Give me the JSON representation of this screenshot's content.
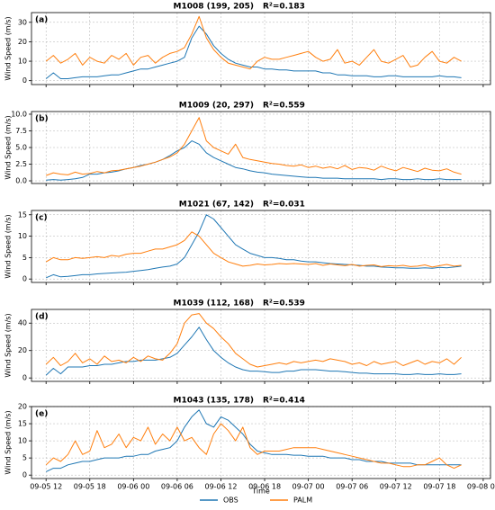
{
  "chart_data": {
    "type": "line",
    "xlabel": "Time",
    "x": [
      "09-05 12",
      "09-05 13",
      "09-05 14",
      "09-05 15",
      "09-05 16",
      "09-05 17",
      "09-05 18",
      "09-05 19",
      "09-05 20",
      "09-05 21",
      "09-05 22",
      "09-05 23",
      "09-06 00",
      "09-06 01",
      "09-06 02",
      "09-06 03",
      "09-06 04",
      "09-06 05",
      "09-06 06",
      "09-06 07",
      "09-06 08",
      "09-06 09",
      "09-06 10",
      "09-06 11",
      "09-06 12",
      "09-06 13",
      "09-06 14",
      "09-06 15",
      "09-06 16",
      "09-06 17",
      "09-06 18",
      "09-06 19",
      "09-06 20",
      "09-06 21",
      "09-06 22",
      "09-06 23",
      "09-07 00",
      "09-07 01",
      "09-07 02",
      "09-07 03",
      "09-07 04",
      "09-07 05",
      "09-07 06",
      "09-07 07",
      "09-07 08",
      "09-07 09",
      "09-07 10",
      "09-07 11",
      "09-07 12",
      "09-07 13",
      "09-07 14",
      "09-07 15",
      "09-07 16",
      "09-07 17",
      "09-07 18",
      "09-07 19",
      "09-07 20",
      "09-07 21"
    ],
    "xlim": [
      "09-05 10",
      "09-08 01"
    ],
    "xticks": [
      "09-05 12",
      "09-05 18",
      "09-06 00",
      "09-06 06",
      "09-06 12",
      "09-06 18",
      "09-07 00",
      "09-07 06",
      "09-07 12",
      "09-07 18",
      "09-08 00"
    ],
    "grid": true,
    "series": [
      {
        "name": "OBS",
        "color": "#1f77b4"
      },
      {
        "name": "PALM",
        "color": "#ff7f0e"
      }
    ],
    "panels": [
      {
        "label": "(a)",
        "title": "M1008 (199, 205)",
        "annotation": "R²=0.183",
        "ylabel": "Wind Speed (m/s)",
        "ylim": [
          -2,
          35
        ],
        "yticks": [
          0,
          10,
          20,
          30
        ],
        "series": [
          {
            "values": [
              1,
              4,
              1,
              1,
              1.5,
              2,
              2,
              2,
              2.5,
              3,
              3,
              4,
              5,
              6,
              6,
              7,
              8,
              9,
              10,
              12,
              22,
              28,
              24,
              18,
              14,
              11,
              9,
              8,
              7,
              7,
              6,
              6,
              5.5,
              5.5,
              5,
              5,
              5,
              5,
              4,
              4,
              3,
              3,
              2.5,
              2.5,
              2.5,
              2,
              2,
              2.5,
              2.5,
              2,
              2,
              2,
              2,
              2,
              2.5,
              2,
              2,
              1.5
            ]
          },
          {
            "values": [
              10,
              13,
              9,
              11,
              14,
              8,
              12,
              10,
              9,
              13,
              11,
              14,
              8,
              12,
              13,
              9,
              12,
              14,
              15,
              17,
              24,
              33,
              22,
              16,
              12,
              9,
              8,
              7,
              6,
              10,
              12,
              11,
              11,
              12,
              13,
              14,
              15,
              12,
              10,
              11,
              16,
              9,
              10,
              8,
              12,
              16,
              10,
              9,
              11,
              13,
              7,
              8,
              12,
              15,
              10,
              9,
              12,
              10
            ]
          }
        ]
      },
      {
        "label": "(b)",
        "title": "M1009 (20, 297)",
        "annotation": "R²=0.559",
        "ylabel": "Wind Speed (m/s)",
        "ylim": [
          -0.4,
          10.4
        ],
        "yticks": [
          {
            "value": 0,
            "label": "0.0"
          },
          {
            "value": 2.5,
            "label": "2.5"
          },
          {
            "value": 5,
            "label": "5.0"
          },
          {
            "value": 7.5,
            "label": "7.5"
          },
          {
            "value": 10,
            "label": "10.0"
          }
        ],
        "series": [
          {
            "values": [
              0.1,
              0.2,
              0.1,
              0.2,
              0.3,
              0.5,
              1,
              1,
              1.2,
              1.3,
              1.5,
              1.8,
              2,
              2.3,
              2.5,
              2.8,
              3.2,
              3.8,
              4.5,
              5,
              6,
              5.5,
              4.2,
              3.5,
              3,
              2.5,
              2,
              1.8,
              1.5,
              1.3,
              1.2,
              1,
              0.9,
              0.8,
              0.7,
              0.6,
              0.5,
              0.5,
              0.4,
              0.4,
              0.4,
              0.3,
              0.3,
              0.3,
              0.3,
              0.3,
              0.2,
              0.3,
              0.3,
              0.2,
              0.2,
              0.3,
              0.2,
              0.2,
              0.3,
              0.2,
              0.2,
              0.2
            ]
          },
          {
            "values": [
              0.8,
              1.2,
              1,
              0.9,
              1.3,
              1,
              1.1,
              1.4,
              1.2,
              1.5,
              1.6,
              1.8,
              2,
              2.2,
              2.5,
              2.8,
              3.2,
              3.6,
              4.2,
              5.5,
              7.5,
              9.5,
              6,
              5,
              4.5,
              4,
              5.5,
              3.5,
              3.2,
              3,
              2.8,
              2.6,
              2.5,
              2.3,
              2.2,
              2.4,
              2,
              2.2,
              1.9,
              2.1,
              1.8,
              2.3,
              1.7,
              2,
              1.9,
              1.6,
              2.2,
              1.8,
              1.5,
              2,
              1.7,
              1.4,
              1.9,
              1.6,
              1.5,
              1.8,
              1.3,
              1
            ]
          }
        ]
      },
      {
        "label": "(c)",
        "title": "M1021 (67, 142)",
        "annotation": "R²=0.031",
        "ylabel": "Wind Speed (m/s)",
        "ylim": [
          -0.8,
          16
        ],
        "yticks": [
          0,
          5,
          10,
          15
        ],
        "series": [
          {
            "values": [
              0.3,
              1,
              0.5,
              0.6,
              0.8,
              1,
              1,
              1.2,
              1.3,
              1.4,
              1.5,
              1.6,
              1.8,
              2,
              2.2,
              2.5,
              2.8,
              3,
              3.5,
              5,
              8,
              11,
              15,
              14,
              12,
              10,
              8,
              7,
              6,
              5.5,
              5,
              5,
              4.8,
              4.5,
              4.5,
              4.2,
              4,
              4,
              3.8,
              3.6,
              3.5,
              3.4,
              3.3,
              3.2,
              3,
              3,
              2.8,
              2.7,
              2.6,
              2.6,
              2.5,
              2.5,
              2.6,
              2.5,
              2.7,
              2.6,
              2.8,
              3
            ]
          },
          {
            "values": [
              4,
              5,
              4.5,
              4.5,
              5,
              4.8,
              5,
              5.2,
              5,
              5.5,
              5.3,
              5.8,
              6,
              6,
              6.5,
              7,
              7,
              7.5,
              8,
              9,
              11,
              10,
              8,
              6,
              5,
              4,
              3.5,
              3,
              3.2,
              3.5,
              3.3,
              3.4,
              3.6,
              3.5,
              3.6,
              3.5,
              3.4,
              3.6,
              3.2,
              3.5,
              3.3,
              3.1,
              3.4,
              3,
              3.2,
              3.3,
              2.9,
              3.1,
              3,
              3.2,
              2.9,
              3,
              3.3,
              2.8,
              3.1,
              3.4,
              3,
              3.2
            ]
          }
        ]
      },
      {
        "label": "(d)",
        "title": "M1039 (112, 168)",
        "annotation": "R²=0.539",
        "ylabel": "Wind Speed (m/s)",
        "ylim": [
          -2.5,
          50
        ],
        "yticks": [
          0,
          20,
          40
        ],
        "series": [
          {
            "values": [
              2,
              7,
              3,
              8,
              8,
              8,
              9,
              9,
              10,
              10,
              11,
              12,
              12,
              13,
              13,
              13,
              14,
              15,
              18,
              24,
              30,
              37,
              28,
              20,
              15,
              11,
              8,
              6,
              5,
              5,
              4.5,
              4,
              4,
              5,
              5,
              6,
              6,
              6,
              5.5,
              5,
              5,
              4.5,
              4,
              3.5,
              3.5,
              3,
              3,
              3,
              3,
              2.5,
              2.5,
              3,
              2.5,
              2.5,
              3,
              2.5,
              2.5,
              3
            ]
          },
          {
            "values": [
              10,
              15,
              9,
              12,
              18,
              11,
              14,
              10,
              16,
              12,
              13,
              11,
              15,
              12,
              16,
              14,
              13,
              18,
              25,
              40,
              46,
              47,
              40,
              36,
              30,
              25,
              18,
              14,
              10,
              8,
              9,
              10,
              11,
              10,
              12,
              11,
              12,
              13,
              12,
              14,
              13,
              12,
              10,
              11,
              9,
              12,
              10,
              11,
              12,
              9,
              11,
              13,
              10,
              12,
              11,
              14,
              10,
              15
            ]
          }
        ]
      },
      {
        "label": "(e)",
        "title": "M1043 (135, 178)",
        "annotation": "R²=0.414",
        "ylabel": "Wind Speed (m/s)",
        "ylim": [
          -1,
          20
        ],
        "yticks": [
          0,
          5,
          10,
          15,
          20
        ],
        "series": [
          {
            "values": [
              1,
              2,
              2,
              3,
              3.5,
              4,
              4,
              4.5,
              5,
              5,
              5,
              5.5,
              5.5,
              6,
              6,
              7,
              7.5,
              8,
              10,
              14,
              17,
              19,
              15,
              14,
              17,
              16,
              14,
              12,
              9,
              7,
              6.5,
              6,
              6,
              6,
              5.8,
              5.8,
              5.5,
              5.5,
              5.5,
              5,
              5,
              5,
              4.5,
              4.5,
              4,
              4,
              4,
              3.5,
              3.5,
              3.5,
              3.5,
              3,
              3,
              3,
              3,
              3,
              3,
              3
            ]
          },
          {
            "values": [
              3,
              5,
              4,
              6,
              10,
              6,
              7,
              13,
              8,
              9,
              12,
              8,
              11,
              10,
              14,
              9,
              12,
              10,
              14,
              10,
              11,
              8,
              6,
              12,
              15,
              13,
              10,
              14,
              8,
              6,
              7,
              7,
              7,
              7.5,
              8,
              8,
              8,
              8,
              7.5,
              7,
              6.5,
              6,
              5.5,
              5,
              4.5,
              4,
              3.5,
              3.5,
              3,
              2.5,
              2.5,
              3,
              3,
              4,
              5,
              3,
              2,
              3
            ]
          }
        ]
      }
    ]
  }
}
